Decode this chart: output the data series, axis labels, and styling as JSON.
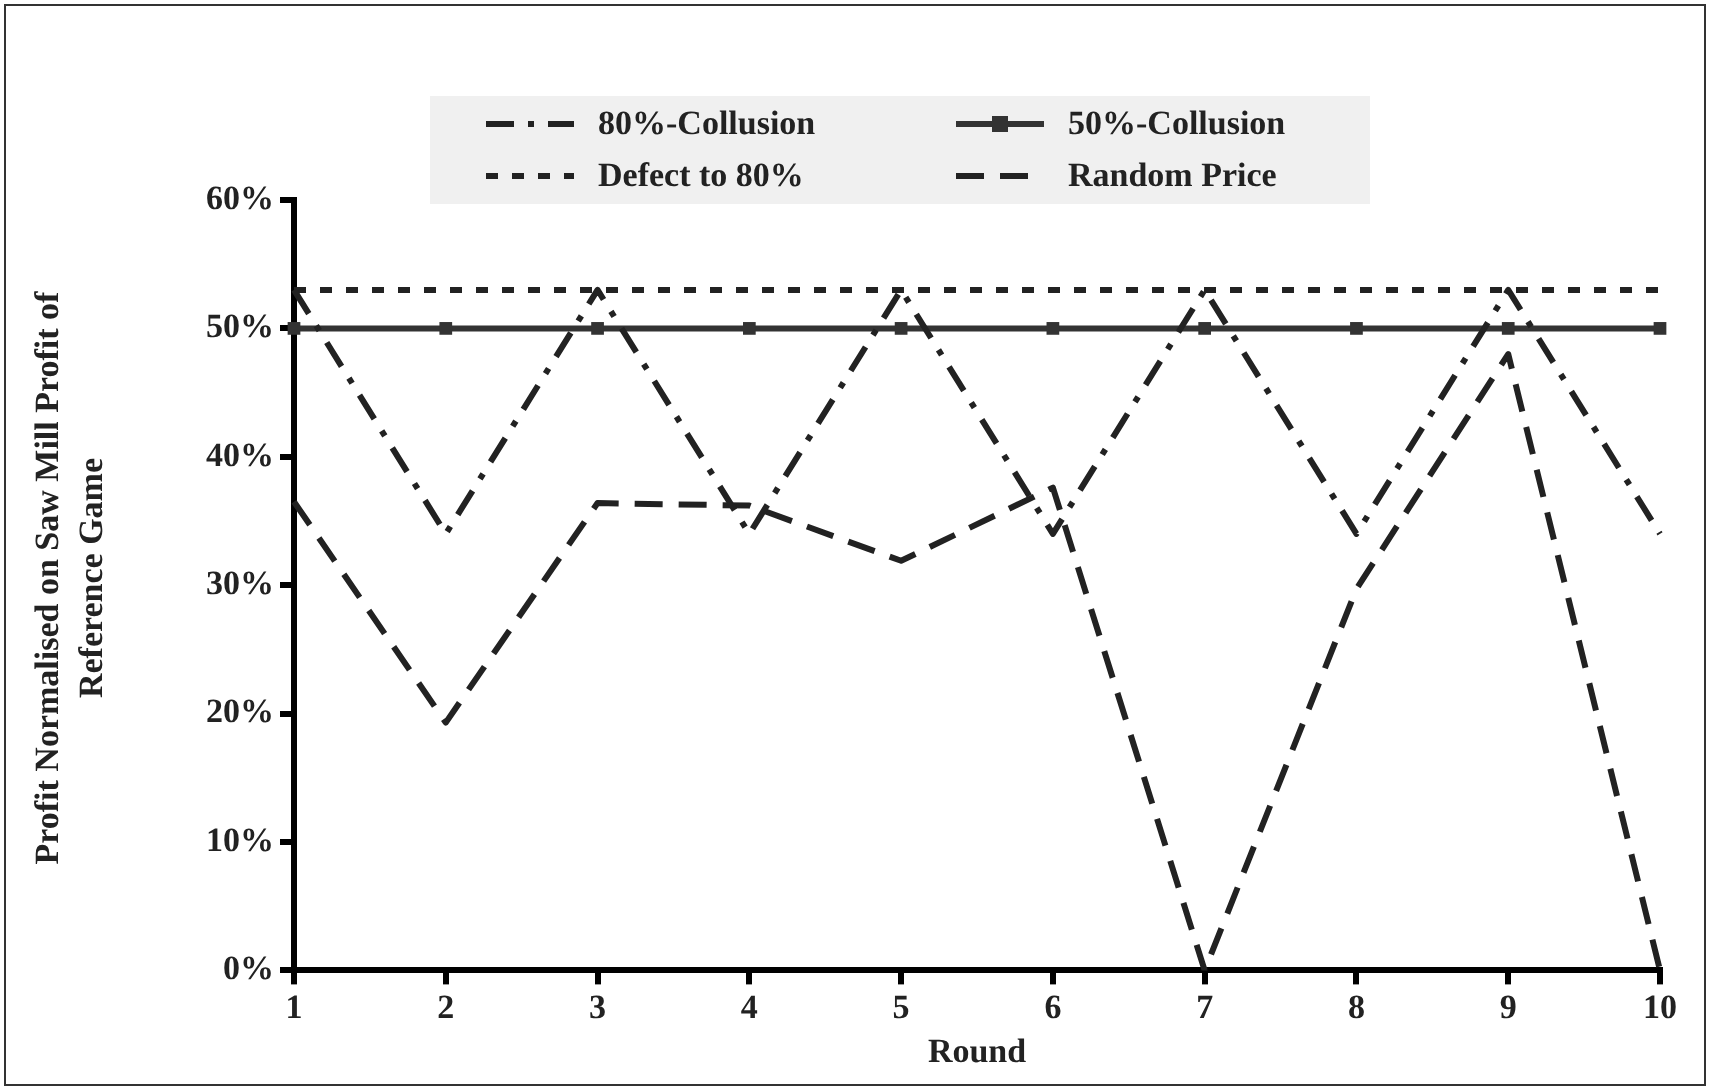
{
  "chart_data": {
    "type": "line",
    "xlabel": "Round",
    "ylabel": "Profit Normalised on Saw Mill Profit of Reference Game",
    "categories": [
      "1",
      "2",
      "3",
      "4",
      "5",
      "6",
      "7",
      "8",
      "9",
      "10"
    ],
    "series": [
      {
        "name": "80%-Collusion",
        "color": "#222222",
        "line_style": "dashdot",
        "marker": "none",
        "values": [
          53,
          34,
          53,
          34,
          53,
          34,
          53,
          34,
          53,
          34
        ]
      },
      {
        "name": "50%-Collusion",
        "color": "#333333",
        "line_style": "solid",
        "marker": "square",
        "values": [
          50,
          50,
          50,
          50,
          50,
          50,
          50,
          50,
          50,
          50
        ]
      },
      {
        "name": "Defect to 80%",
        "color": "#222222",
        "line_style": "dotted",
        "marker": "none",
        "values": [
          53,
          53,
          53,
          53,
          53,
          53,
          53,
          53,
          53,
          53
        ]
      },
      {
        "name": "Random Price",
        "color": "#222222",
        "line_style": "dashed",
        "marker": "none",
        "values": [
          36.5,
          19.3,
          36.4,
          36.2,
          31.9,
          37.6,
          0,
          29.7,
          48,
          0
        ]
      }
    ],
    "ylim": [
      0,
      60
    ],
    "yticks": [
      {
        "value": 0,
        "label": "0%"
      },
      {
        "value": 10,
        "label": "10%"
      },
      {
        "value": 20,
        "label": "20%"
      },
      {
        "value": 30,
        "label": "30%"
      },
      {
        "value": 40,
        "label": "40%"
      },
      {
        "value": 50,
        "label": "50%"
      },
      {
        "value": 60,
        "label": "60%"
      }
    ],
    "grid": false,
    "legend": "top"
  }
}
